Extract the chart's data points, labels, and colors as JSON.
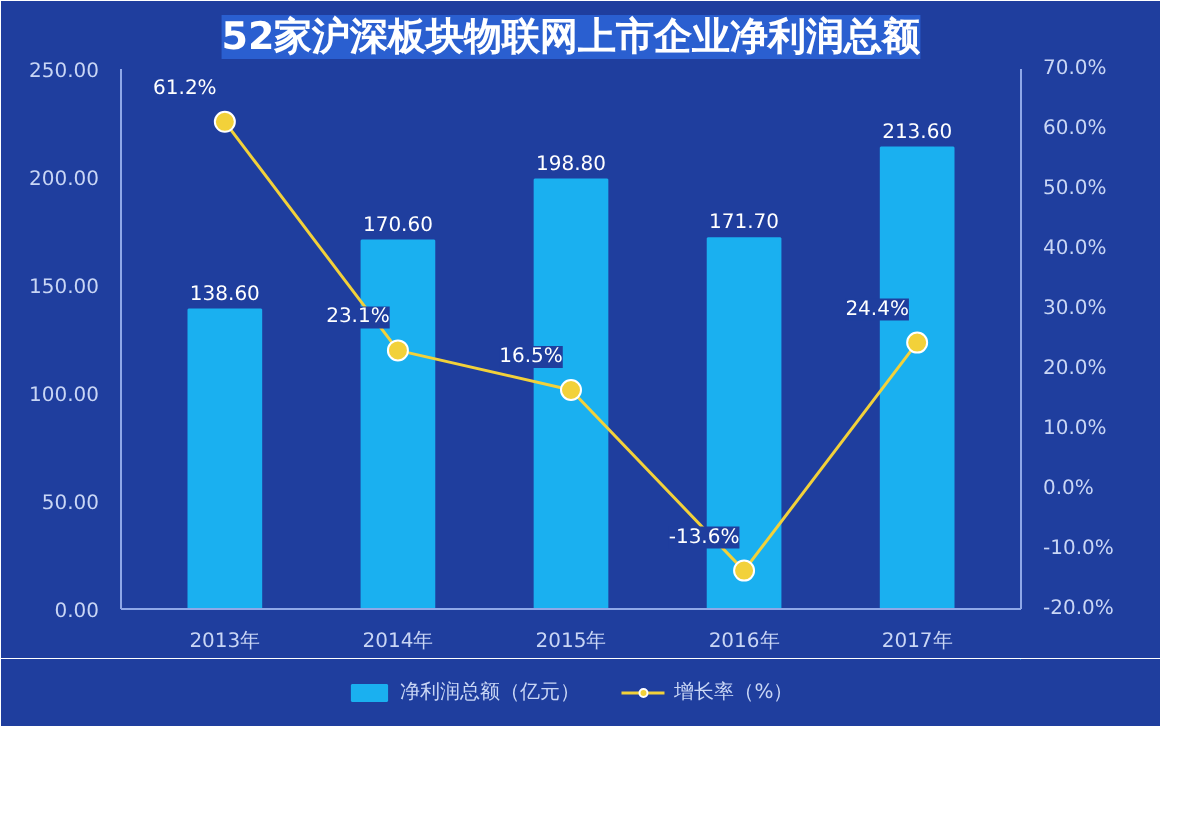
{
  "chart_data": {
    "type": "bar",
    "title": "52家沪深板块物联网上市企业净利润总额",
    "categories": [
      "2013年",
      "2014年",
      "2015年",
      "2016年",
      "2017年"
    ],
    "series": [
      {
        "name": "净利润总额（亿元）",
        "color": "#1ab0f0",
        "values": [
          138.6,
          170.6,
          198.8,
          171.7,
          213.6
        ],
        "value_labels": [
          "138.60",
          "170.60",
          "198.80",
          "171.70",
          "213.60"
        ]
      },
      {
        "name": "增长率（%）",
        "type": "line",
        "axis": "y2",
        "color": "#f2d13a",
        "values": [
          61.2,
          23.1,
          16.5,
          -13.6,
          24.4
        ],
        "value_labels": [
          "61.2%",
          "23.1%",
          "16.5%",
          "-13.6%",
          "24.4%"
        ]
      }
    ],
    "ylim": [
      0,
      250
    ],
    "yticks": [
      {
        "value": 0,
        "label": "0.00"
      },
      {
        "value": 50,
        "label": "50.00"
      },
      {
        "value": 100,
        "label": "100.00"
      },
      {
        "value": 150,
        "label": "150.00"
      },
      {
        "value": 200,
        "label": "200.00"
      },
      {
        "value": 250,
        "label": "250.00"
      }
    ],
    "y2lim": [
      -20,
      70
    ],
    "y2ticks": [
      {
        "value": -20,
        "label": "-20.0%"
      },
      {
        "value": -10,
        "label": "-10.0%"
      },
      {
        "value": 0,
        "label": "0.0%"
      },
      {
        "value": 10,
        "label": "10.0%"
      },
      {
        "value": 20,
        "label": "20.0%"
      },
      {
        "value": 30,
        "label": "30.0%"
      },
      {
        "value": 40,
        "label": "40.0%"
      },
      {
        "value": 50,
        "label": "50.0%"
      },
      {
        "value": 60,
        "label": "60.0%"
      },
      {
        "value": 70,
        "label": "70.0%"
      }
    ],
    "grid": false,
    "legend": "bottom",
    "marker": "circle",
    "line_style": "solid"
  }
}
